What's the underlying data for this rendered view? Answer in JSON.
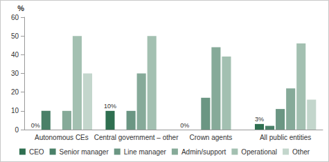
{
  "chart_data": {
    "type": "bar",
    "y_label": "%",
    "categories": [
      "Autonomous CEs",
      "Central government – other",
      "Crown agents",
      "All public entities"
    ],
    "ylim": [
      0,
      60
    ],
    "yticks": [
      0,
      10,
      20,
      30,
      40,
      50,
      60
    ],
    "grid": false,
    "legend": "bottom",
    "series": [
      {
        "name": "CEO",
        "color": "#2f6f50",
        "values": [
          0,
          10,
          0,
          3
        ],
        "data_labels": true,
        "value_labels": [
          "0%",
          "10%",
          "0%",
          "3%"
        ]
      },
      {
        "name": "Senior manager",
        "color": "#4a8068",
        "values": [
          10,
          0,
          0,
          2
        ]
      },
      {
        "name": "Line manager",
        "color": "#6b9683",
        "values": [
          0,
          10,
          17,
          11
        ]
      },
      {
        "name": "Admin/support",
        "color": "#86aa99",
        "values": [
          10,
          30,
          44,
          22
        ]
      },
      {
        "name": "Operational",
        "color": "#a3c0b1",
        "values": [
          50,
          50,
          39,
          46
        ]
      },
      {
        "name": "Other",
        "color": "#c3d6cc",
        "values": [
          30,
          0,
          0,
          16
        ]
      }
    ]
  }
}
